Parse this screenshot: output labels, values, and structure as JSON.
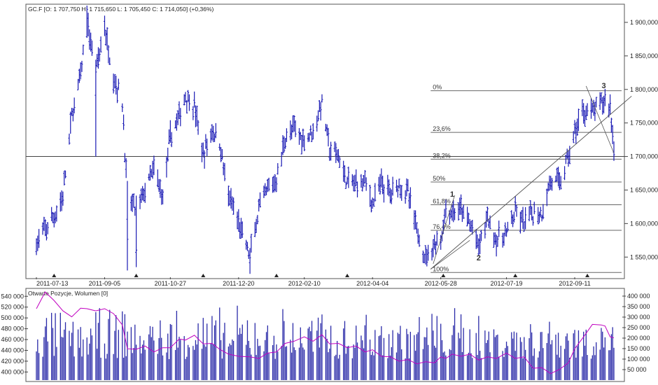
{
  "header": {
    "price_title": "GC.F [O: 1 707,750  H: 1 715,650  L: 1 705,450  C: 1 714,050] (+0,36%)",
    "indicator_title": "Otwarte Pozycje, Wolumen [0]"
  },
  "colors": {
    "price": "#1a1ab4",
    "volume": "#2a2aa8",
    "open_interest": "#c000c0",
    "grid": "#7a7a7a",
    "frame": "#555555"
  },
  "chart_data": [
    {
      "type": "bar",
      "subtype": "ohlc",
      "x_labels": [
        "2011-07-13",
        "2011-09-05",
        "2011-10-27",
        "2011-12-20",
        "2012-02-10",
        "2012-04-04",
        "2012-05-28",
        "2012-07-19",
        "2012-09-11"
      ],
      "x_range": [
        "2011-07-13",
        "2012-10-12"
      ],
      "y_ticks": [
        "1 550,000",
        "1 600,000",
        "1 650,000",
        "1 700,000",
        "1 750,000",
        "1 800,000",
        "1 850,000",
        "1 900,000"
      ],
      "ylim": [
        1520,
        1925
      ],
      "reference_line": 1700,
      "series": [
        {
          "points": [
            [
              "2011-07-13",
              1570
            ],
            [
              "2011-07-20",
              1590
            ],
            [
              "2011-07-27",
              1610
            ],
            [
              "2011-08-03",
              1640
            ],
            [
              "2011-08-10",
              1760
            ],
            [
              "2011-08-17",
              1820
            ],
            [
              "2011-08-22",
              1900
            ],
            [
              "2011-08-29",
              1830
            ],
            [
              "2011-09-05",
              1890
            ],
            [
              "2011-09-12",
              1820
            ],
            [
              "2011-09-19",
              1780
            ],
            [
              "2011-09-23",
              1640
            ],
            [
              "2011-09-30",
              1620
            ],
            [
              "2011-10-07",
              1650
            ],
            [
              "2011-10-14",
              1680
            ],
            [
              "2011-10-21",
              1640
            ],
            [
              "2011-10-27",
              1730
            ],
            [
              "2011-11-03",
              1760
            ],
            [
              "2011-11-08",
              1790
            ],
            [
              "2011-11-15",
              1775
            ],
            [
              "2011-11-22",
              1700
            ],
            [
              "2011-11-29",
              1740
            ],
            [
              "2011-12-05",
              1720
            ],
            [
              "2011-12-12",
              1640
            ],
            [
              "2011-12-20",
              1600
            ],
            [
              "2011-12-29",
              1550
            ],
            [
              "2012-01-05",
              1620
            ],
            [
              "2012-01-12",
              1650
            ],
            [
              "2012-01-19",
              1665
            ],
            [
              "2012-01-26",
              1730
            ],
            [
              "2012-02-02",
              1740
            ],
            [
              "2012-02-10",
              1725
            ],
            [
              "2012-02-17",
              1740
            ],
            [
              "2012-02-24",
              1780
            ],
            [
              "2012-03-01",
              1710
            ],
            [
              "2012-03-08",
              1700
            ],
            [
              "2012-03-15",
              1660
            ],
            [
              "2012-03-22",
              1660
            ],
            [
              "2012-03-29",
              1665
            ],
            [
              "2012-04-04",
              1630
            ],
            [
              "2012-04-11",
              1660
            ],
            [
              "2012-04-18",
              1645
            ],
            [
              "2012-04-25",
              1660
            ],
            [
              "2012-05-02",
              1645
            ],
            [
              "2012-05-09",
              1590
            ],
            [
              "2012-05-16",
              1550
            ],
            [
              "2012-05-23",
              1570
            ],
            [
              "2012-05-28",
              1575
            ],
            [
              "2012-06-01",
              1620
            ],
            [
              "2012-06-06",
              1615
            ],
            [
              "2012-06-13",
              1620
            ],
            [
              "2012-06-20",
              1600
            ],
            [
              "2012-06-27",
              1565
            ],
            [
              "2012-07-04",
              1610
            ],
            [
              "2012-07-11",
              1575
            ],
            [
              "2012-07-19",
              1585
            ],
            [
              "2012-07-26",
              1615
            ],
            [
              "2012-08-02",
              1600
            ],
            [
              "2012-08-09",
              1615
            ],
            [
              "2012-08-16",
              1615
            ],
            [
              "2012-08-23",
              1665
            ],
            [
              "2012-08-30",
              1660
            ],
            [
              "2012-09-06",
              1700
            ],
            [
              "2012-09-11",
              1735
            ],
            [
              "2012-09-18",
              1770
            ],
            [
              "2012-09-25",
              1765
            ],
            [
              "2012-10-02",
              1780
            ],
            [
              "2012-10-05",
              1785
            ],
            [
              "2012-10-09",
              1775
            ],
            [
              "2012-10-12",
              1714
            ]
          ]
        }
      ],
      "fibonacci": {
        "labels": [
          "0%",
          "23,6%",
          "38,2%",
          "50%",
          "61,8%",
          "76,4%",
          "100%"
        ],
        "levels": [
          1798,
          1736,
          1696,
          1662,
          1628,
          1590,
          1527
        ]
      },
      "wave_labels": [
        {
          "label": "1",
          "x": "2012-06-06",
          "y": 1640
        },
        {
          "label": "2",
          "x": "2012-06-27",
          "y": 1545
        },
        {
          "label": "3",
          "x": "2012-10-04",
          "y": 1802
        }
      ],
      "trendline": {
        "from": [
          "2012-05-20",
          1532
        ],
        "to": [
          "2012-10-26",
          1790
        ]
      },
      "fan_lines": [
        {
          "from": [
            "2012-05-20",
            1532
          ],
          "to": [
            "2012-06-20",
            1575
          ]
        },
        {
          "from": [
            "2012-05-22",
            1540
          ],
          "to": [
            "2012-06-08",
            1642
          ]
        },
        {
          "from": [
            "2012-09-20",
            1805
          ],
          "to": [
            "2012-10-12",
            1705
          ]
        }
      ]
    },
    {
      "type": "bar",
      "title": "Otwarte Pozycje, Wolumen [0]",
      "left_ticks": [
        "400 000",
        "420 000",
        "440 000",
        "460 000",
        "480 000",
        "500 000",
        "520 000",
        "540 000"
      ],
      "left_range": [
        385000,
        552000
      ],
      "right_ticks": [
        "50 000",
        "100 000",
        "150 000",
        "200 000",
        "250 000",
        "300 000",
        "350 000",
        "400 000"
      ],
      "right_range": [
        0,
        430000
      ],
      "open_interest": [
        [
          "2011-07-13",
          520000
        ],
        [
          "2011-07-20",
          545000
        ],
        [
          "2011-07-27",
          535000
        ],
        [
          "2011-08-03",
          510000
        ],
        [
          "2011-08-10",
          505000
        ],
        [
          "2011-08-17",
          515000
        ],
        [
          "2011-08-22",
          520000
        ],
        [
          "2011-08-29",
          510000
        ],
        [
          "2011-09-05",
          520000
        ],
        [
          "2011-09-12",
          505000
        ],
        [
          "2011-09-19",
          490000
        ],
        [
          "2011-09-23",
          440000
        ],
        [
          "2011-09-30",
          445000
        ],
        [
          "2011-10-07",
          445000
        ],
        [
          "2011-10-14",
          440000
        ],
        [
          "2011-10-21",
          442000
        ],
        [
          "2011-10-27",
          448000
        ],
        [
          "2011-11-03",
          458000
        ],
        [
          "2011-11-08",
          462000
        ],
        [
          "2011-11-15",
          465000
        ],
        [
          "2011-11-22",
          455000
        ],
        [
          "2011-11-29",
          450000
        ],
        [
          "2011-12-05",
          445000
        ],
        [
          "2011-12-12",
          430000
        ],
        [
          "2011-12-20",
          432000
        ],
        [
          "2011-12-29",
          425000
        ],
        [
          "2012-01-05",
          428000
        ],
        [
          "2012-01-12",
          432000
        ],
        [
          "2012-01-19",
          440000
        ],
        [
          "2012-01-26",
          450000
        ],
        [
          "2012-02-02",
          460000
        ],
        [
          "2012-02-10",
          462000
        ],
        [
          "2012-02-17",
          460000
        ],
        [
          "2012-02-24",
          466000
        ],
        [
          "2012-03-01",
          455000
        ],
        [
          "2012-03-08",
          450000
        ],
        [
          "2012-03-15",
          448000
        ],
        [
          "2012-03-22",
          445000
        ],
        [
          "2012-03-29",
          440000
        ],
        [
          "2012-04-04",
          438000
        ],
        [
          "2012-04-11",
          432000
        ],
        [
          "2012-04-18",
          425000
        ],
        [
          "2012-04-25",
          423000
        ],
        [
          "2012-05-02",
          420000
        ],
        [
          "2012-05-09",
          418000
        ],
        [
          "2012-05-16",
          416000
        ],
        [
          "2012-05-23",
          420000
        ],
        [
          "2012-05-28",
          425000
        ],
        [
          "2012-06-01",
          428000
        ],
        [
          "2012-06-06",
          430000
        ],
        [
          "2012-06-13",
          432000
        ],
        [
          "2012-06-20",
          430000
        ],
        [
          "2012-06-27",
          425000
        ],
        [
          "2012-07-04",
          425000
        ],
        [
          "2012-07-11",
          428000
        ],
        [
          "2012-07-19",
          432000
        ],
        [
          "2012-07-26",
          428000
        ],
        [
          "2012-08-02",
          425000
        ],
        [
          "2012-08-09",
          410000
        ],
        [
          "2012-08-16",
          405000
        ],
        [
          "2012-08-23",
          400000
        ],
        [
          "2012-08-30",
          402000
        ],
        [
          "2012-09-06",
          420000
        ],
        [
          "2012-09-11",
          440000
        ],
        [
          "2012-09-18",
          468000
        ],
        [
          "2012-09-25",
          485000
        ],
        [
          "2012-10-02",
          490000
        ],
        [
          "2012-10-05",
          482000
        ],
        [
          "2012-10-09",
          468000
        ],
        [
          "2012-10-12",
          460000
        ]
      ],
      "volume_range": [
        100000,
        370000
      ]
    }
  ]
}
